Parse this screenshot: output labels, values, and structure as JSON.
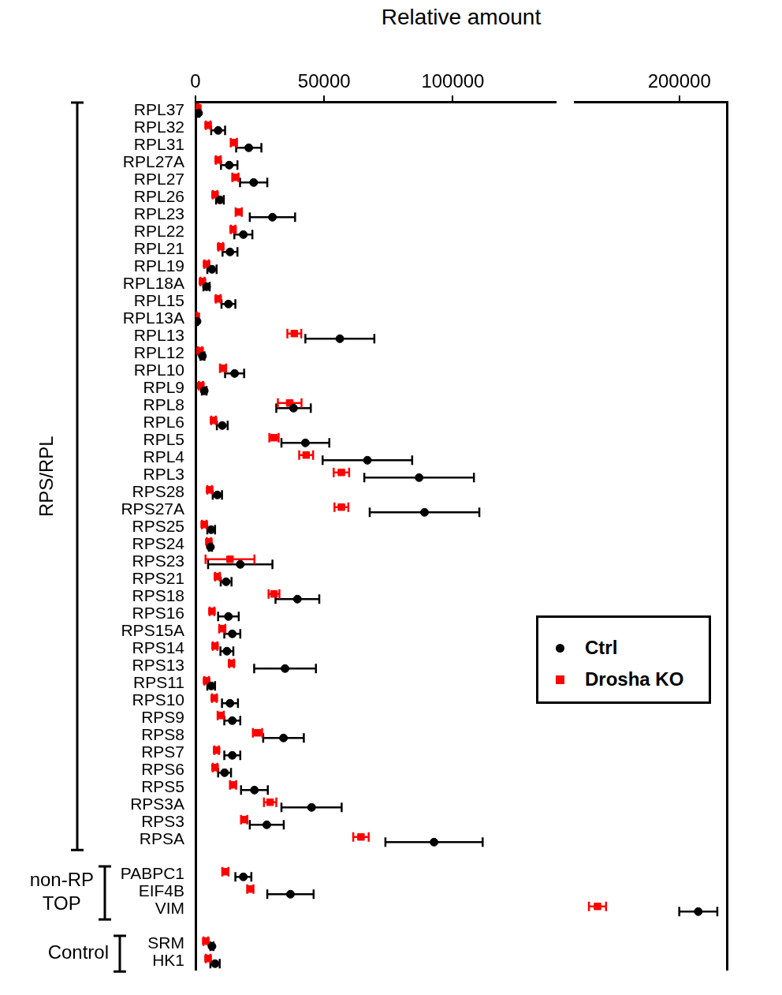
{
  "chart_data": [
    {
      "type": "scatter",
      "orientation": "horizontal",
      "title": "Relative amount",
      "categories": [
        "RPL37",
        "RPL32",
        "RPL31",
        "RPL27A",
        "RPL27",
        "RPL26",
        "RPL23",
        "RPL22",
        "RPL21",
        "RPL19",
        "RPL18A",
        "RPL15",
        "RPL13A",
        "RPL13",
        "RPL12",
        "RPL10",
        "RPL9",
        "RPL8",
        "RPL6",
        "RPL5",
        "RPL4",
        "RPL3",
        "RPS28",
        "RPS27A",
        "RPS25",
        "RPS24",
        "RPS23",
        "RPS21",
        "RPS18",
        "RPS16",
        "RPS15A",
        "RPS14",
        "RPS13",
        "RPS11",
        "RPS10",
        "RPS9",
        "RPS8",
        "RPS7",
        "RPS6",
        "RPS5",
        "RPS3A",
        "RPS3",
        "RPSA",
        null,
        "PABPC1",
        "EIF4B",
        "VIM",
        null,
        "SRM",
        "HK1"
      ],
      "series": [
        {
          "name": "Ctrl",
          "color": "#000000",
          "marker": "circle",
          "values": [
            1200,
            8800,
            20700,
            13100,
            22600,
            9500,
            29900,
            18600,
            13400,
            6400,
            4300,
            12800,
            600,
            56100,
            2700,
            15200,
            3400,
            38100,
            10400,
            42700,
            66800,
            86900,
            8500,
            89000,
            6100,
            5800,
            17400,
            11900,
            39600,
            12800,
            14300,
            12200,
            34800,
            6100,
            13400,
            14300,
            34200,
            14300,
            11300,
            22900,
            45100,
            27700,
            92700,
            null,
            18600,
            36900,
            null,
            null,
            6400,
            7600
          ],
          "errors": [
            300,
            2700,
            4900,
            3200,
            5300,
            1500,
            8800,
            3500,
            2900,
            1800,
            1200,
            2700,
            300,
            13400,
            800,
            3700,
            900,
            6700,
            2100,
            9300,
            17400,
            21300,
            1800,
            21300,
            1500,
            600,
            12500,
            2100,
            8500,
            4000,
            3100,
            2500,
            12000,
            1500,
            3100,
            3100,
            7900,
            3100,
            2500,
            5200,
            11700,
            6600,
            18900,
            null,
            3100,
            9000,
            null,
            null,
            600,
            1800
          ]
        },
        {
          "name": "Drosha KO",
          "color": "#ff0000",
          "marker": "square",
          "values": [
            900,
            4900,
            14900,
            8800,
            15500,
            7600,
            16800,
            14600,
            9800,
            4300,
            2700,
            8800,
            300,
            38400,
            1800,
            10700,
            2100,
            36600,
            7000,
            30500,
            43000,
            56700,
            5500,
            56700,
            3400,
            5200,
            13400,
            8500,
            30500,
            6400,
            10400,
            7600,
            14000,
            4300,
            7300,
            9800,
            24100,
            8200,
            7600,
            14600,
            29000,
            18900,
            64300,
            null,
            11600,
            21300,
            null,
            null,
            4000,
            4900
          ],
          "errors": [
            200,
            900,
            1200,
            900,
            1200,
            900,
            1200,
            900,
            900,
            900,
            800,
            900,
            200,
            2700,
            800,
            1200,
            800,
            4600,
            900,
            1800,
            2700,
            3000,
            900,
            2700,
            900,
            800,
            9500,
            900,
            2100,
            900,
            1200,
            900,
            900,
            900,
            900,
            1200,
            1800,
            900,
            900,
            1200,
            2400,
            1200,
            3000,
            null,
            1200,
            1200,
            null,
            null,
            900,
            900
          ]
        }
      ],
      "xlim": [
        0,
        140000
      ],
      "xticks": [
        0,
        50000,
        100000
      ],
      "grid": false,
      "legend": "right",
      "groups": [
        {
          "label": "RPS/RPL",
          "from": "RPL37",
          "to": "RPSA"
        },
        {
          "label": "non-RP TOP",
          "from": "PABPC1",
          "to": "VIM"
        },
        {
          "label": "Control",
          "from": "SRM",
          "to": "HK1"
        }
      ]
    },
    {
      "type": "scatter",
      "orientation": "horizontal",
      "categories": [
        "RPL37",
        "RPL32",
        "RPL31",
        "RPL27A",
        "RPL27",
        "RPL26",
        "RPL23",
        "RPL22",
        "RPL21",
        "RPL19",
        "RPL18A",
        "RPL15",
        "RPL13A",
        "RPL13",
        "RPL12",
        "RPL10",
        "RPL9",
        "RPL8",
        "RPL6",
        "RPL5",
        "RPL4",
        "RPL3",
        "RPS28",
        "RPS27A",
        "RPS25",
        "RPS24",
        "RPS23",
        "RPS21",
        "RPS18",
        "RPS16",
        "RPS15A",
        "RPS14",
        "RPS13",
        "RPS11",
        "RPS10",
        "RPS9",
        "RPS8",
        "RPS7",
        "RPS6",
        "RPS5",
        "RPS3A",
        "RPS3",
        "RPSA",
        null,
        "PABPC1",
        "EIF4B",
        "VIM",
        null,
        "SRM",
        "HK1"
      ],
      "series": [
        {
          "name": "Ctrl",
          "color": "#000000",
          "marker": "circle",
          "values": [
            null,
            null,
            null,
            null,
            null,
            null,
            null,
            null,
            null,
            null,
            null,
            null,
            null,
            null,
            null,
            null,
            null,
            null,
            null,
            null,
            null,
            null,
            null,
            null,
            null,
            null,
            null,
            null,
            null,
            null,
            null,
            null,
            null,
            null,
            null,
            null,
            null,
            null,
            null,
            null,
            null,
            null,
            null,
            null,
            null,
            null,
            210000,
            null,
            null,
            null
          ],
          "errors": [
            null,
            null,
            null,
            null,
            null,
            null,
            null,
            null,
            null,
            null,
            null,
            null,
            null,
            null,
            null,
            null,
            null,
            null,
            null,
            null,
            null,
            null,
            null,
            null,
            null,
            null,
            null,
            null,
            null,
            null,
            null,
            null,
            null,
            null,
            null,
            null,
            null,
            null,
            null,
            null,
            null,
            null,
            null,
            null,
            null,
            null,
            10000,
            null,
            null,
            null
          ]
        },
        {
          "name": "Drosha KO",
          "color": "#ff0000",
          "marker": "square",
          "values": [
            null,
            null,
            null,
            null,
            null,
            null,
            null,
            null,
            null,
            null,
            null,
            null,
            null,
            null,
            null,
            null,
            null,
            null,
            null,
            null,
            null,
            null,
            null,
            null,
            null,
            null,
            null,
            null,
            null,
            null,
            null,
            null,
            null,
            null,
            null,
            null,
            null,
            null,
            null,
            null,
            null,
            null,
            null,
            null,
            null,
            null,
            157000,
            null,
            null,
            null
          ],
          "errors": [
            null,
            null,
            null,
            null,
            null,
            null,
            null,
            null,
            null,
            null,
            null,
            null,
            null,
            null,
            null,
            null,
            null,
            null,
            null,
            null,
            null,
            null,
            null,
            null,
            null,
            null,
            null,
            null,
            null,
            null,
            null,
            null,
            null,
            null,
            null,
            null,
            null,
            null,
            null,
            null,
            null,
            null,
            null,
            null,
            null,
            null,
            4500,
            null,
            null,
            null
          ]
        }
      ],
      "xlim": [
        145000,
        225000
      ],
      "xticks": [
        200000
      ],
      "grid": false,
      "tick_labels": "x"
    }
  ]
}
